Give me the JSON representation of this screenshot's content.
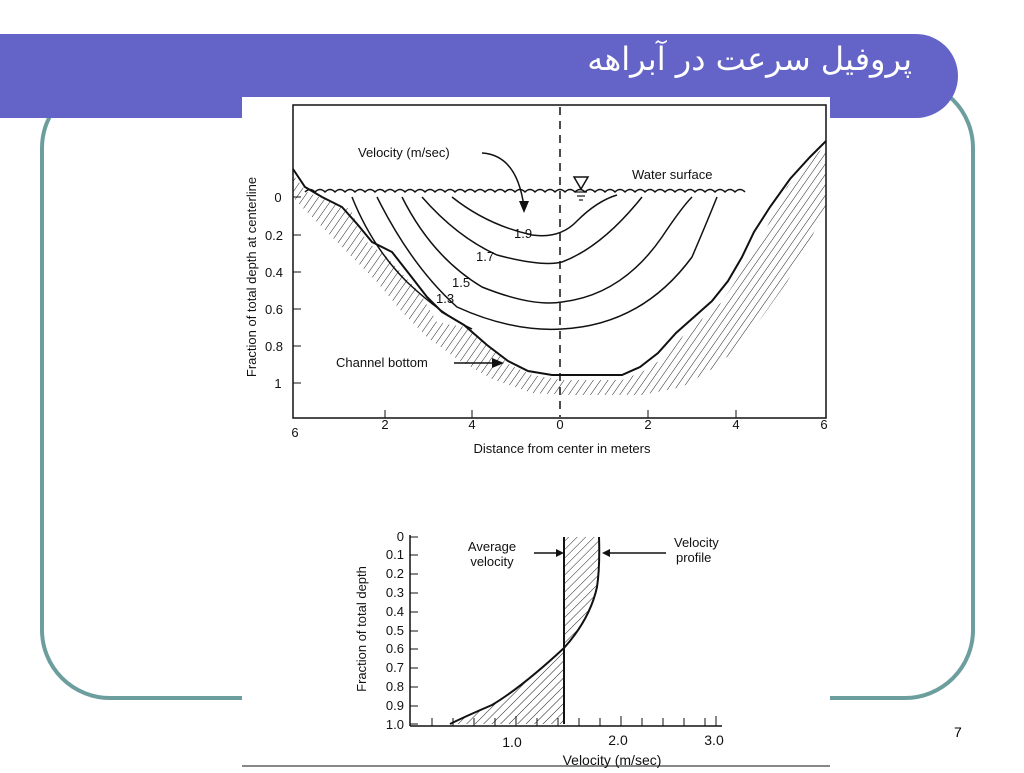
{
  "slide": {
    "title": "پروفیل سرعت در آبراهه",
    "page_number": "7"
  },
  "cross_section": {
    "y_axis_label": "Fraction of total depth at centerline",
    "y_ticks": [
      "0",
      "0.2",
      "0.4",
      "0.6",
      "0.8",
      "1"
    ],
    "x_axis_label": "Distance from center in meters",
    "x_ticks": [
      "6",
      "2",
      "4",
      "0",
      "2",
      "4",
      "6"
    ],
    "velocity_label": "Velocity (m/sec)",
    "water_surface_label": "Water surface",
    "channel_bottom_label": "Channel bottom",
    "isovel_labels": [
      "1.9",
      "1.7",
      "1.5",
      "1.3"
    ]
  },
  "vertical_profile": {
    "y_axis_label": "Fraction of total depth",
    "y_ticks": [
      "0",
      "0.1",
      "0.2",
      "0.3",
      "0.4",
      "0.5",
      "0.6",
      "0.7",
      "0.8",
      "0.9",
      "1.0"
    ],
    "x_axis_label": "Velocity (m/sec)",
    "x_ticks": [
      "1.0",
      "2.0",
      "3.0"
    ],
    "average_velocity_label": [
      "Average",
      "velocity"
    ],
    "velocity_profile_label": [
      "Velocity",
      "profile"
    ]
  },
  "colors": {
    "title_band": "#6464c8",
    "frame_border": "#6d9e9e"
  }
}
